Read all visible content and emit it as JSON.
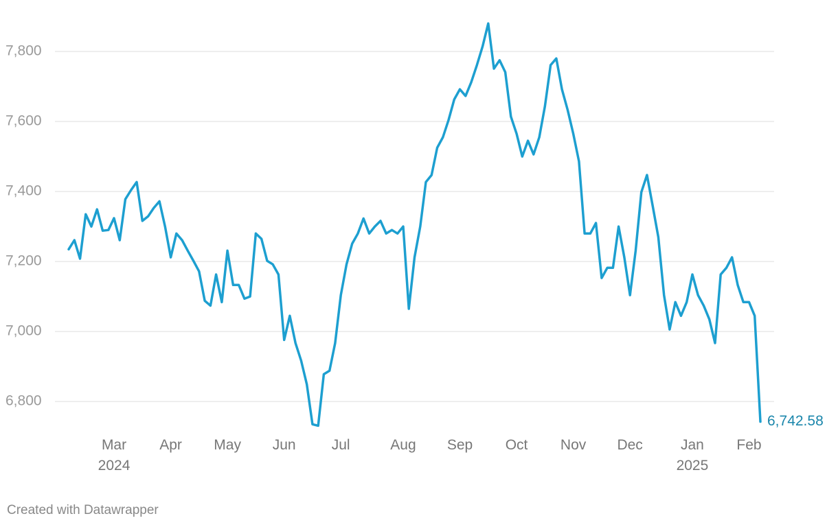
{
  "chart_data": {
    "type": "line",
    "categories": [
      null,
      null,
      null,
      null,
      null,
      null,
      null,
      null,
      "Mar\n2024",
      null,
      null,
      null,
      null,
      null,
      null,
      null,
      null,
      null,
      "Apr",
      null,
      null,
      null,
      null,
      null,
      null,
      null,
      null,
      null,
      "May",
      null,
      null,
      null,
      null,
      null,
      null,
      null,
      null,
      null,
      "Jun",
      null,
      null,
      null,
      null,
      null,
      null,
      null,
      null,
      null,
      "Jul",
      null,
      null,
      null,
      null,
      null,
      null,
      null,
      null,
      null,
      null,
      "Aug",
      null,
      null,
      null,
      null,
      null,
      null,
      null,
      null,
      null,
      "Sep",
      null,
      null,
      null,
      null,
      null,
      null,
      null,
      null,
      null,
      "Oct",
      null,
      null,
      null,
      null,
      null,
      null,
      null,
      null,
      null,
      "Nov",
      null,
      null,
      null,
      null,
      null,
      null,
      null,
      null,
      null,
      "Dec",
      null,
      null,
      null,
      null,
      null,
      null,
      null,
      null,
      null,
      null,
      "Jan\n2025",
      null,
      null,
      null,
      null,
      null,
      null,
      null,
      null,
      null,
      "Feb",
      null,
      null
    ],
    "series": [
      {
        "color": "#1d9fd0",
        "values": [
          7235,
          7261,
          7208,
          7335,
          7300,
          7349,
          7288,
          7290,
          7324,
          7261,
          7378,
          7404,
          7427,
          7316,
          7329,
          7353,
          7372,
          7300,
          7212,
          7280,
          7261,
          7231,
          7202,
          7172,
          7088,
          7074,
          7163,
          7084,
          7231,
          7133,
          7133,
          7094,
          7100,
          7280,
          7265,
          7202,
          7192,
          7163,
          6976,
          7045,
          6967,
          6917,
          6849,
          6735,
          6731,
          6878,
          6888,
          6967,
          7104,
          7192,
          7251,
          7280,
          7323,
          7280,
          7300,
          7316,
          7280,
          7290,
          7280,
          7300,
          7065,
          7212,
          7300,
          7427,
          7447,
          7525,
          7555,
          7604,
          7663,
          7692,
          7673,
          7712,
          7761,
          7814,
          7880,
          7751,
          7775,
          7741,
          7614,
          7565,
          7500,
          7545,
          7506,
          7555,
          7643,
          7761,
          7780,
          7692,
          7633,
          7565,
          7486,
          7280,
          7280,
          7310,
          7153,
          7182,
          7182,
          7300,
          7212,
          7104,
          7231,
          7398,
          7447,
          7359,
          7270,
          7104,
          7006,
          7084,
          7045,
          7084,
          7163,
          7104,
          7074,
          7035,
          6967,
          7163,
          7182,
          7212,
          7133,
          7084,
          7084,
          7045,
          6742.58
        ],
        "value_labels": [
          null,
          null,
          null,
          null,
          null,
          null,
          null,
          null,
          null,
          null,
          null,
          null,
          null,
          null,
          null,
          null,
          null,
          null,
          null,
          null,
          null,
          null,
          null,
          null,
          null,
          null,
          null,
          null,
          null,
          null,
          null,
          null,
          null,
          null,
          null,
          null,
          null,
          null,
          null,
          null,
          null,
          null,
          null,
          null,
          null,
          null,
          null,
          null,
          null,
          null,
          null,
          null,
          null,
          null,
          null,
          null,
          null,
          null,
          null,
          null,
          null,
          null,
          null,
          null,
          null,
          null,
          null,
          null,
          null,
          null,
          null,
          null,
          null,
          null,
          null,
          null,
          null,
          null,
          null,
          null,
          null,
          null,
          null,
          null,
          null,
          null,
          null,
          null,
          null,
          null,
          null,
          null,
          null,
          null,
          null,
          null,
          null,
          null,
          null,
          null,
          null,
          null,
          null,
          null,
          null,
          null,
          null,
          null,
          null,
          null,
          null,
          null,
          null,
          null,
          null,
          null,
          null,
          null,
          null,
          null,
          null,
          null,
          "6,742.58"
        ],
        "label_color": "#1a86ab"
      }
    ],
    "ylim": [
      6720,
      7900
    ],
    "yticks": [
      {
        "value": 6800,
        "label": "6,800"
      },
      {
        "value": 7000,
        "label": "7,000"
      },
      {
        "value": 7200,
        "label": "7,200"
      },
      {
        "value": 7400,
        "label": "7,400"
      },
      {
        "value": 7600,
        "label": "7,600"
      },
      {
        "value": 7800,
        "label": "7,800"
      }
    ],
    "grid": true
  },
  "footer": "Created with Datawrapper"
}
